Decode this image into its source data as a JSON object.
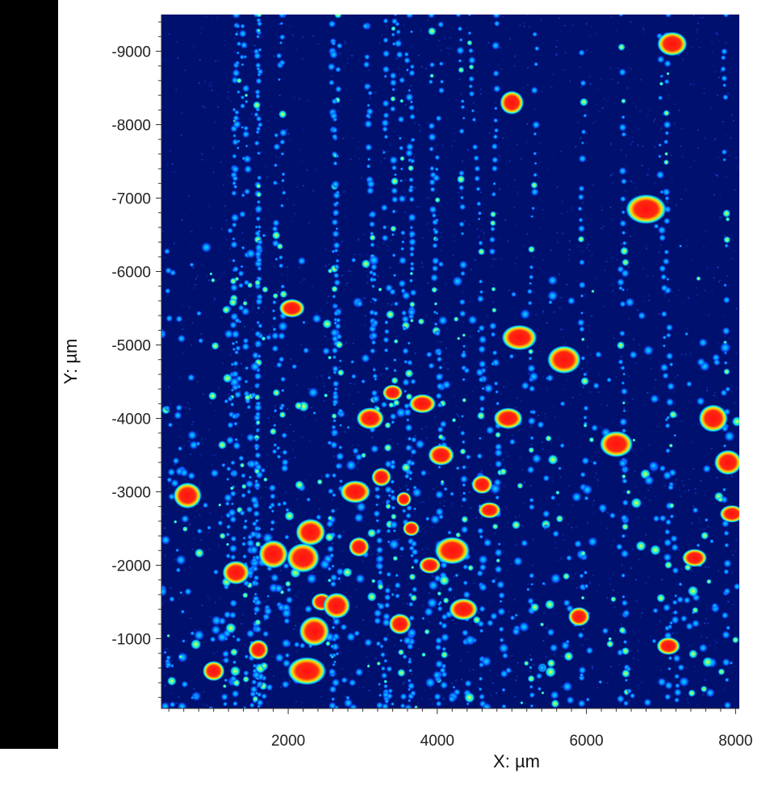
{
  "chart_data": {
    "type": "heatmap",
    "title": "",
    "xlabel": "X: µm",
    "ylabel": "Y: µm",
    "xlim": [
      300,
      8050
    ],
    "ylim": [
      -9500,
      -50
    ],
    "x_ticks": [
      2000,
      4000,
      6000,
      8000
    ],
    "x_tick_labels": [
      "2000",
      "4000",
      "6000",
      "8000"
    ],
    "y_ticks": [
      -9000,
      -8000,
      -7000,
      -6000,
      -5000,
      -4000,
      -3000,
      -2000,
      -1000
    ],
    "y_tick_labels": [
      "-9000",
      "-8000",
      "-7000",
      "-6000",
      "-5000",
      "-4000",
      "-3000",
      "-2000",
      "-1000"
    ],
    "colormap": "jet",
    "colors": {
      "background": "#00106e",
      "low": "#0a3cff",
      "mid": "#00e8ff",
      "upper": "#ffee00",
      "high": "#ff1a1a"
    },
    "grid": false,
    "hotspots_high": [
      {
        "x": 650,
        "y": -2950
      },
      {
        "x": 1000,
        "y": -560
      },
      {
        "x": 1300,
        "y": -1900
      },
      {
        "x": 2050,
        "y": -5500
      },
      {
        "x": 2300,
        "y": -2450
      },
      {
        "x": 2200,
        "y": -2100
      },
      {
        "x": 2250,
        "y": -560
      },
      {
        "x": 2350,
        "y": -1100
      },
      {
        "x": 2450,
        "y": -1500
      },
      {
        "x": 2650,
        "y": -1450
      },
      {
        "x": 2900,
        "y": -3000
      },
      {
        "x": 2950,
        "y": -2250
      },
      {
        "x": 3100,
        "y": -4000
      },
      {
        "x": 3250,
        "y": -3200
      },
      {
        "x": 3400,
        "y": -4350
      },
      {
        "x": 3500,
        "y": -1200
      },
      {
        "x": 3550,
        "y": -2900
      },
      {
        "x": 3650,
        "y": -2500
      },
      {
        "x": 3800,
        "y": -4200
      },
      {
        "x": 3900,
        "y": -2000
      },
      {
        "x": 4050,
        "y": -3500
      },
      {
        "x": 4200,
        "y": -2200
      },
      {
        "x": 4350,
        "y": -1400
      },
      {
        "x": 4600,
        "y": -3100
      },
      {
        "x": 4700,
        "y": -2750
      },
      {
        "x": 4950,
        "y": -4000
      },
      {
        "x": 5000,
        "y": -8300
      },
      {
        "x": 5100,
        "y": -5100
      },
      {
        "x": 5700,
        "y": -4800
      },
      {
        "x": 5900,
        "y": -1300
      },
      {
        "x": 6400,
        "y": -3650
      },
      {
        "x": 6800,
        "y": -6850
      },
      {
        "x": 7150,
        "y": -9100
      },
      {
        "x": 7100,
        "y": -900
      },
      {
        "x": 7450,
        "y": -2100
      },
      {
        "x": 7700,
        "y": -4000
      },
      {
        "x": 7900,
        "y": -3400
      },
      {
        "x": 7950,
        "y": -2700
      },
      {
        "x": 1800,
        "y": -2150
      },
      {
        "x": 1600,
        "y": -850
      }
    ]
  }
}
